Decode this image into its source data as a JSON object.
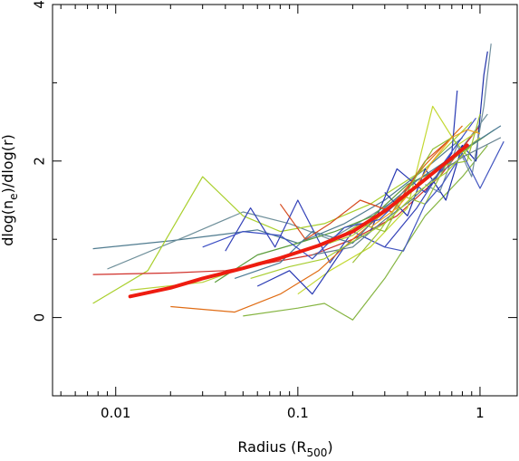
{
  "chart_data": {
    "type": "line",
    "xlabel": "Radius (R",
    "xlabel_sub": "500",
    "xlabel_close": ")",
    "ylabel_pre": "dlog(n",
    "ylabel_sub": "e",
    "ylabel_post": ")/dlog(r)",
    "x_scale": "log",
    "xlim": [
      0.0045,
      1.6
    ],
    "ylim": [
      -1,
      4
    ],
    "x_ticks": [
      0.01,
      0.1,
      1
    ],
    "x_tick_labels": [
      "0.01",
      "0.1",
      "1"
    ],
    "y_ticks": [
      0,
      2,
      4
    ],
    "y_tick_labels": [
      "0",
      "2",
      "4"
    ],
    "grid": false,
    "series": [
      {
        "color": "#4f7b8f",
        "x": [
          0.0075,
          0.02,
          0.035,
          0.06,
          0.1,
          0.18,
          0.3,
          0.5,
          0.8
        ],
        "y": [
          0.88,
          0.98,
          1.05,
          1.12,
          0.95,
          1.2,
          1.5,
          1.9,
          2.3
        ]
      },
      {
        "color": "#6e8f9a",
        "x": [
          0.009,
          0.025,
          0.05,
          0.09,
          0.15,
          0.25,
          0.4,
          0.7,
          1.1
        ],
        "y": [
          0.62,
          1.05,
          1.35,
          1.2,
          1.0,
          1.3,
          1.6,
          2.0,
          2.6
        ]
      },
      {
        "color": "#a9cf2c",
        "x": [
          0.0075,
          0.015,
          0.03,
          0.05,
          0.08,
          0.14,
          0.25,
          0.5,
          0.9
        ],
        "y": [
          0.18,
          0.6,
          1.8,
          1.3,
          1.1,
          1.2,
          1.45,
          1.9,
          2.5
        ]
      },
      {
        "color": "#d0302a",
        "x": [
          0.0075,
          0.02,
          0.04,
          0.07,
          0.12,
          0.2,
          0.35,
          0.6,
          1.0
        ],
        "y": [
          0.55,
          0.57,
          0.6,
          0.7,
          0.8,
          1.0,
          1.3,
          1.8,
          2.45
        ]
      },
      {
        "color": "#3341b8",
        "x": [
          0.04,
          0.055,
          0.075,
          0.1,
          0.15,
          0.2,
          0.3,
          0.45,
          0.6,
          0.8
        ],
        "y": [
          0.85,
          1.4,
          0.9,
          1.5,
          0.7,
          1.1,
          0.9,
          1.4,
          1.85,
          2.2
        ]
      },
      {
        "color": "#e06c14",
        "x": [
          0.02,
          0.045,
          0.08,
          0.13,
          0.2,
          0.32,
          0.5,
          0.8
        ],
        "y": [
          0.14,
          0.07,
          0.3,
          0.6,
          1.0,
          1.4,
          1.95,
          2.45
        ]
      },
      {
        "color": "#86b542",
        "x": [
          0.05,
          0.1,
          0.14,
          0.2,
          0.3,
          0.5,
          0.8,
          1.1
        ],
        "y": [
          0.02,
          0.12,
          0.18,
          -0.03,
          0.5,
          1.3,
          1.8,
          2.2
        ]
      },
      {
        "color": "#c3d832",
        "x": [
          0.1,
          0.15,
          0.25,
          0.4,
          0.55,
          0.75,
          1.0
        ],
        "y": [
          0.3,
          0.6,
          0.9,
          1.4,
          2.7,
          2.2,
          2.4
        ]
      },
      {
        "color": "#1e2fa8",
        "x": [
          0.3,
          0.4,
          0.5,
          0.65,
          0.8,
          0.95,
          1.05,
          1.1
        ],
        "y": [
          1.6,
          1.3,
          1.9,
          1.5,
          2.2,
          2.0,
          3.1,
          3.4
        ]
      },
      {
        "color": "#708f9e",
        "x": [
          0.5,
          0.6,
          0.75,
          0.9,
          1.05,
          1.15
        ],
        "y": [
          1.7,
          1.6,
          2.2,
          1.8,
          2.7,
          3.5
        ]
      },
      {
        "color": "#2738b3",
        "x": [
          0.06,
          0.09,
          0.12,
          0.18,
          0.25,
          0.35,
          0.5,
          0.7,
          0.75
        ],
        "y": [
          0.4,
          0.6,
          0.3,
          0.9,
          1.1,
          1.9,
          1.6,
          2.1,
          2.9
        ]
      },
      {
        "color": "#5b9d3c",
        "x": [
          0.035,
          0.06,
          0.1,
          0.16,
          0.26,
          0.4,
          0.6,
          0.9,
          1.2
        ],
        "y": [
          0.45,
          0.8,
          0.95,
          1.1,
          1.3,
          1.7,
          1.9,
          2.2,
          2.4
        ]
      },
      {
        "color": "#b8d23a",
        "x": [
          0.012,
          0.03,
          0.06,
          0.11,
          0.2,
          0.35,
          0.6,
          1.0
        ],
        "y": [
          0.35,
          0.45,
          0.7,
          0.85,
          1.05,
          1.45,
          1.9,
          2.3
        ]
      },
      {
        "color": "#4b7a94",
        "x": [
          0.045,
          0.08,
          0.12,
          0.2,
          0.3,
          0.45,
          0.7,
          1.3
        ],
        "y": [
          0.5,
          0.7,
          1.1,
          0.95,
          1.4,
          1.75,
          2.05,
          2.45
        ]
      },
      {
        "color": "#d64a1e",
        "x": [
          0.08,
          0.11,
          0.15,
          0.22,
          0.33,
          0.5,
          0.7
        ],
        "y": [
          1.45,
          1.0,
          1.2,
          1.5,
          1.35,
          2.0,
          2.3
        ]
      },
      {
        "color": "#8fbf32",
        "x": [
          0.15,
          0.22,
          0.3,
          0.42,
          0.55,
          0.7,
          0.9
        ],
        "y": [
          0.95,
          1.2,
          1.1,
          1.7,
          2.15,
          2.3,
          2.0
        ]
      },
      {
        "color": "#3b4ec4",
        "x": [
          0.03,
          0.05,
          0.08,
          0.12,
          0.18,
          0.28,
          0.4,
          0.62,
          0.95
        ],
        "y": [
          0.9,
          1.1,
          1.05,
          0.75,
          1.15,
          1.25,
          1.6,
          1.95,
          2.55
        ]
      },
      {
        "color": "#9ec23a",
        "x": [
          0.2,
          0.28,
          0.38,
          0.5,
          0.65,
          0.85,
          1.0
        ],
        "y": [
          0.7,
          1.1,
          1.55,
          1.45,
          1.95,
          2.0,
          2.6
        ]
      },
      {
        "color": "#f0a020",
        "x": [
          0.25,
          0.35,
          0.45,
          0.55,
          0.7,
          0.85,
          1.0
        ],
        "y": [
          1.15,
          1.4,
          1.7,
          2.0,
          2.3,
          2.4,
          2.35
        ]
      },
      {
        "color": "#627f8c",
        "x": [
          0.12,
          0.2,
          0.3,
          0.42,
          0.6,
          0.8,
          1.3
        ],
        "y": [
          0.8,
          0.9,
          1.25,
          1.5,
          1.85,
          2.05,
          2.3
        ]
      },
      {
        "color": "#4255c0",
        "x": [
          0.3,
          0.38,
          0.5,
          0.62,
          0.8,
          1.0,
          1.35
        ],
        "y": [
          0.9,
          0.85,
          1.45,
          1.7,
          2.1,
          1.65,
          2.25
        ]
      },
      {
        "color": "#a8ce30",
        "x": [
          0.055,
          0.09,
          0.14,
          0.21,
          0.3,
          0.45,
          0.65,
          0.9
        ],
        "y": [
          0.5,
          0.65,
          0.75,
          1.0,
          1.2,
          1.6,
          1.85,
          2.2
        ]
      }
    ],
    "mean_series": {
      "color": "#ee1c10",
      "x": [
        0.012,
        0.02,
        0.03,
        0.05,
        0.08,
        0.13,
        0.2,
        0.3,
        0.45,
        0.65,
        0.85
      ],
      "y": [
        0.27,
        0.38,
        0.5,
        0.63,
        0.76,
        0.92,
        1.1,
        1.36,
        1.68,
        1.98,
        2.2
      ]
    }
  }
}
